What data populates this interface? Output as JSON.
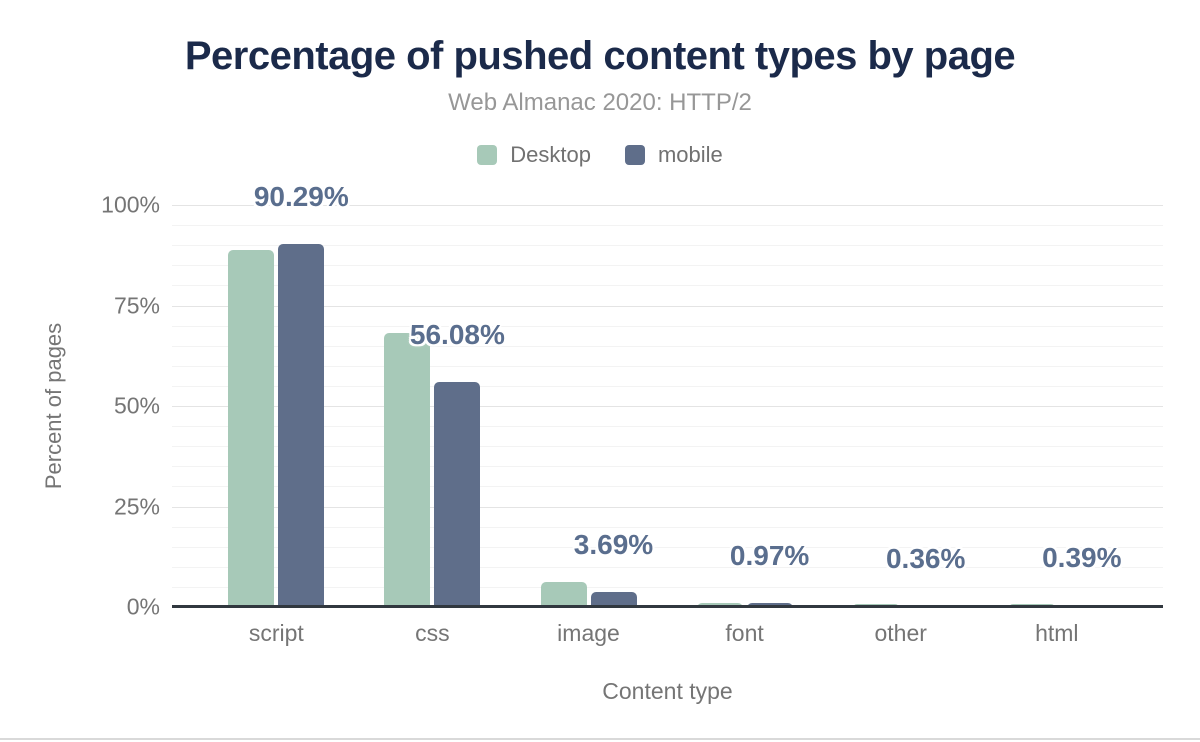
{
  "chart": {
    "title": "Percentage of pushed content types by page",
    "subtitle": "Web Almanac 2020: HTTP/2"
  },
  "chart_data": {
    "type": "bar",
    "title": "Percentage of pushed content types by page",
    "subtitle": "Web Almanac 2020: HTTP/2",
    "categories": [
      "script",
      "css",
      "image",
      "font",
      "other",
      "html"
    ],
    "series": [
      {
        "name": "Desktop",
        "color": "#a7c9b8",
        "values": [
          88.9,
          68.1,
          6.1,
          1.1,
          0.7,
          0.7
        ]
      },
      {
        "name": "mobile",
        "color": "#5f6e8a",
        "values": [
          90.29,
          56.08,
          3.69,
          0.97,
          0.36,
          0.39
        ]
      }
    ],
    "data_labels": [
      "90.29%",
      "56.08%",
      "3.69%",
      "0.97%",
      "0.36%",
      "0.39%"
    ],
    "data_labels_series": "mobile",
    "xlabel": "Content type",
    "ylabel": "Percent of pages",
    "ylim": [
      0,
      100
    ],
    "ytick_values": [
      0,
      25,
      50,
      75,
      100
    ],
    "ytick_labels": [
      "0%",
      "25%",
      "50%",
      "75%",
      "100%"
    ],
    "grid": "horizontal: minor every 5%, major every 25%",
    "legend_position": "top-center",
    "colors": {
      "title": "#1b2a4a",
      "subtitle": "#979797",
      "axis_text": "#757575",
      "data_label": "#5a6e8e",
      "axis_line": "#31383f",
      "desktop_bar": "#a7c9b8",
      "mobile_bar": "#5f6e8a"
    }
  }
}
